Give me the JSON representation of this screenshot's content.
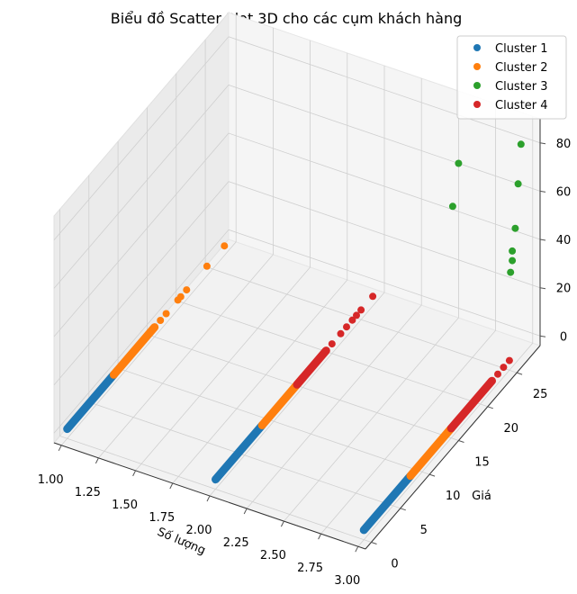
{
  "chart_data": {
    "type": "scatter",
    "projection": "3d",
    "title": "Biểu đồ Scatter Plot 3D cho các cụm khách hàng",
    "xlabel": "Số lượng",
    "ylabel": "Giá",
    "zlabel": "",
    "xlim": [
      0.95,
      3.05
    ],
    "ylim": [
      -1,
      29
    ],
    "zlim": [
      -4,
      90
    ],
    "x_ticks": [
      "1.00",
      "1.25",
      "1.50",
      "1.75",
      "2.00",
      "2.25",
      "2.50",
      "2.75",
      "3.00"
    ],
    "y_ticks": [
      "0",
      "5",
      "10",
      "15",
      "20",
      "25"
    ],
    "z_ticks": [
      "0",
      "20",
      "40",
      "60",
      "80"
    ],
    "grid": true,
    "legend_position": "top-right",
    "series": [
      {
        "name": "Cluster 1",
        "color": "#1f77b4",
        "segments": [
          {
            "x": 1,
            "y0": 0,
            "y1": 8,
            "z": 0
          },
          {
            "x": 2,
            "y0": 0,
            "y1": 8,
            "z": 0
          },
          {
            "x": 3,
            "y0": 0,
            "y1": 8,
            "z": 0
          }
        ],
        "points": []
      },
      {
        "name": "Cluster 2",
        "color": "#ff7f0e",
        "segments": [
          {
            "x": 1,
            "y0": 8,
            "y1": 15,
            "z": 0
          },
          {
            "x": 2,
            "y0": 8,
            "y1": 15,
            "z": 0
          },
          {
            "x": 3,
            "y0": 8,
            "y1": 15,
            "z": 0
          }
        ],
        "points": [
          {
            "x": 1,
            "y": 16,
            "z": 0
          },
          {
            "x": 1,
            "y": 17,
            "z": 0
          },
          {
            "x": 1,
            "y": 19,
            "z": 0
          },
          {
            "x": 1,
            "y": 19.5,
            "z": 0
          },
          {
            "x": 1,
            "y": 20.5,
            "z": 0
          },
          {
            "x": 1,
            "y": 24,
            "z": 0
          },
          {
            "x": 1,
            "y": 27,
            "z": 0
          }
        ]
      },
      {
        "name": "Cluster 3",
        "color": "#2ca02c",
        "segments": [],
        "points": [
          {
            "x": 3,
            "y": 27,
            "z": 84
          },
          {
            "x": 3,
            "y": 26.5,
            "z": 69
          },
          {
            "x": 3,
            "y": 26,
            "z": 52
          },
          {
            "x": 3,
            "y": 25.5,
            "z": 44
          },
          {
            "x": 3,
            "y": 25.5,
            "z": 40
          },
          {
            "x": 3,
            "y": 25.2,
            "z": 36
          },
          {
            "x": 2.5,
            "y": 29,
            "z": 60
          },
          {
            "x": 2.5,
            "y": 28,
            "z": 45
          }
        ]
      },
      {
        "name": "Cluster 4",
        "color": "#d62728",
        "segments": [
          {
            "x": 3,
            "y0": 15,
            "y1": 22,
            "z": 0
          },
          {
            "x": 2,
            "y0": 14,
            "y1": 19,
            "z": 0
          }
        ],
        "points": [
          {
            "x": 3,
            "y": 22,
            "z": 0
          },
          {
            "x": 3,
            "y": 23,
            "z": 0
          },
          {
            "x": 3,
            "y": 24,
            "z": 0
          },
          {
            "x": 3,
            "y": 25,
            "z": 0
          },
          {
            "x": 2,
            "y": 20,
            "z": 0
          },
          {
            "x": 2,
            "y": 21.5,
            "z": 0
          },
          {
            "x": 2,
            "y": 22.5,
            "z": 0
          },
          {
            "x": 2,
            "y": 23.5,
            "z": 0
          },
          {
            "x": 2,
            "y": 24.2,
            "z": 0
          },
          {
            "x": 2,
            "y": 25,
            "z": 0
          },
          {
            "x": 2,
            "y": 27,
            "z": 0
          }
        ]
      }
    ]
  }
}
